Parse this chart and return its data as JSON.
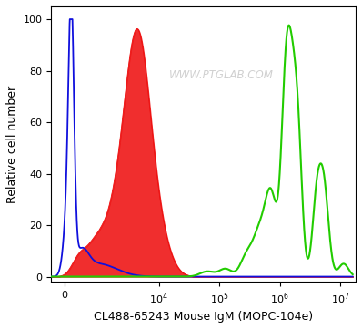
{
  "title": "",
  "xlabel": "CL488-65243 Mouse IgM (MOPC-104e)",
  "ylabel": "Relative cell number",
  "watermark": "WWW.PTGLAB.COM",
  "ylim": [
    -2,
    105
  ],
  "yticks": [
    0,
    20,
    40,
    60,
    80,
    100
  ],
  "background_color": "#ffffff",
  "plot_bg_color": "#ffffff",
  "watermark_color": "#c8c8c8",
  "blue_color": "#1010dd",
  "red_color": "#ee1111",
  "red_fill_color": "#ee1111",
  "green_color": "#22cc00",
  "linthresh": 1000,
  "linscale": 0.5
}
